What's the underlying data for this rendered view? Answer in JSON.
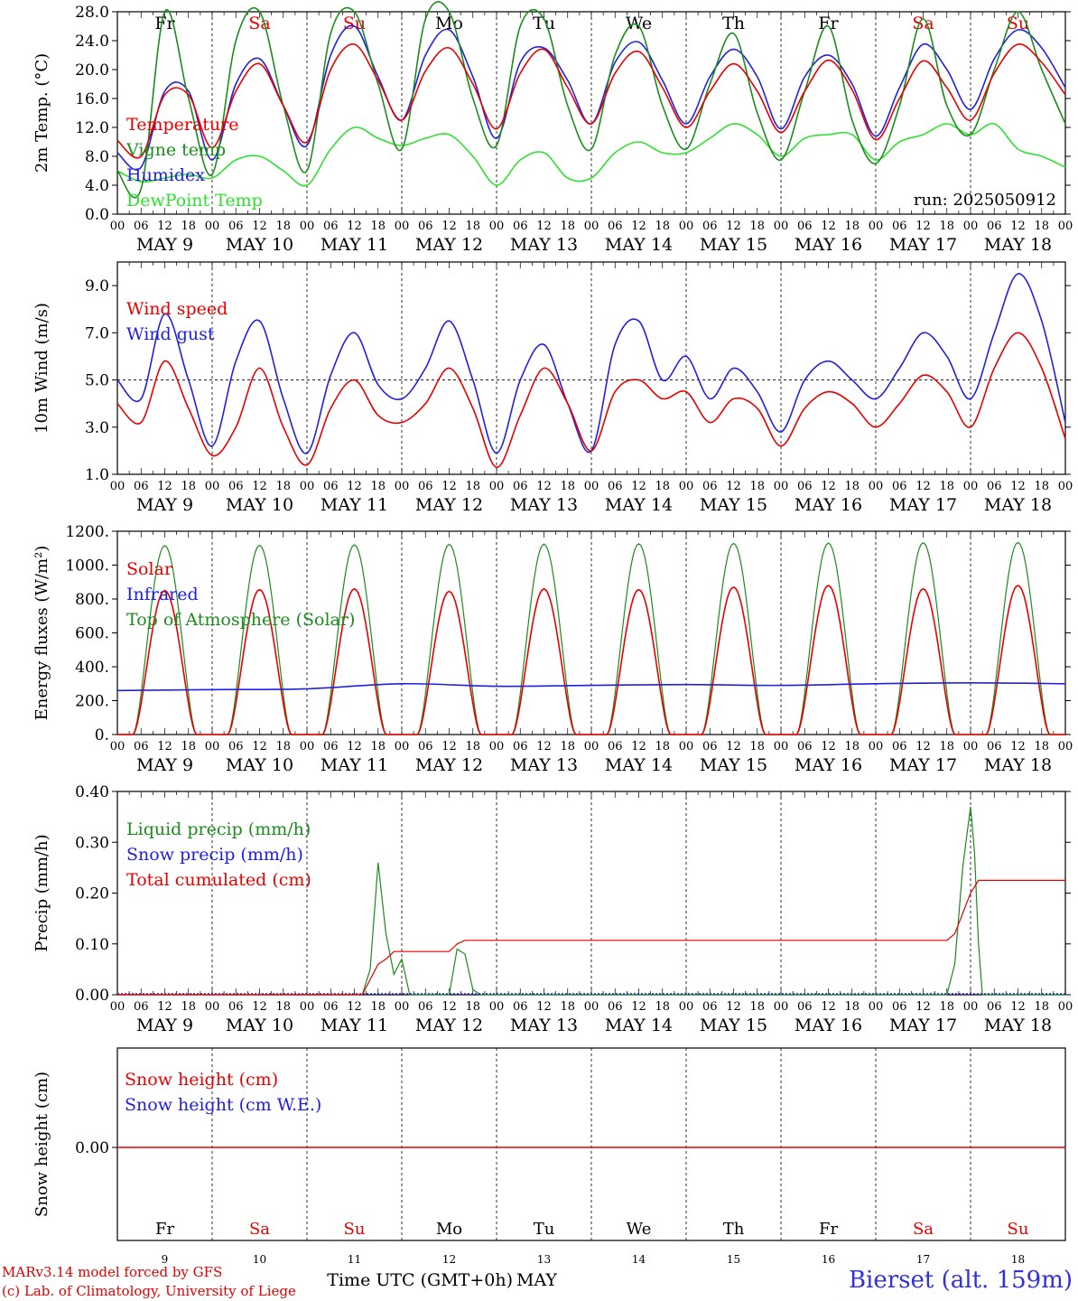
{
  "colors": {
    "red": "#e80000",
    "green": "#1c8c1c",
    "blue": "#2020e0",
    "lime": "#30e030",
    "black": "#000000",
    "weekend": "#e80000"
  },
  "days": [
    {
      "abbr": "Fr",
      "date": "MAY  9",
      "num": "9",
      "weekend": false
    },
    {
      "abbr": "Sa",
      "date": "MAY 10",
      "num": "10",
      "weekend": true
    },
    {
      "abbr": "Su",
      "date": "MAY 11",
      "num": "11",
      "weekend": true
    },
    {
      "abbr": "Mo",
      "date": "MAY 12",
      "num": "12",
      "weekend": false
    },
    {
      "abbr": "Tu",
      "date": "MAY 13",
      "num": "13",
      "weekend": false
    },
    {
      "abbr": "We",
      "date": "MAY 14",
      "num": "14",
      "weekend": false
    },
    {
      "abbr": "Th",
      "date": "MAY 15",
      "num": "15",
      "weekend": false
    },
    {
      "abbr": "Fr",
      "date": "MAY 16",
      "num": "16",
      "weekend": false
    },
    {
      "abbr": "Sa",
      "date": "MAY 17",
      "num": "17",
      "weekend": true
    },
    {
      "abbr": "Su",
      "date": "MAY 18",
      "num": "18",
      "weekend": true
    }
  ],
  "hour_ticks": [
    "00",
    "06",
    "12",
    "18"
  ],
  "final_hour_tick": "00",
  "run_label": "run: 2025050912",
  "xaxis_label": "Time UTC (GMT+0h)",
  "month_label": "MAY",
  "footer": {
    "credit_line1": "MARv3.14 model forced by GFS",
    "credit_line2": "(c) Lab. of Climatology, University of Liege",
    "station": "Bierset (alt. 159m)"
  },
  "chart_data": [
    {
      "type": "line",
      "ylabel": "2m Temp. (°C)",
      "ylim": [
        0,
        28
      ],
      "yticks": [
        "0.0",
        "4.0",
        "8.0",
        "12.0",
        "16.0",
        "20.0",
        "24.0",
        "28.0"
      ],
      "x_unit": "hours since 2025-05-09 00 UTC",
      "x_range": [
        0,
        240
      ],
      "series": [
        {
          "name": "Temperature",
          "color": "red",
          "x": [
            0,
            6,
            12,
            18,
            24,
            30,
            36,
            42,
            48,
            54,
            60,
            66,
            72,
            78,
            84,
            90,
            96,
            102,
            108,
            114,
            120,
            126,
            132,
            138,
            144,
            150,
            156,
            162,
            168,
            174,
            180,
            186,
            192,
            198,
            204,
            210,
            216,
            222,
            228,
            234,
            240
          ],
          "values": [
            10.2,
            8.0,
            16.5,
            16.5,
            9.2,
            17.0,
            20.8,
            15.0,
            10.0,
            20.0,
            23.5,
            18.5,
            13.0,
            19.8,
            23.0,
            18.0,
            11.8,
            19.5,
            22.8,
            17.5,
            12.5,
            19.5,
            22.5,
            17.5,
            12.0,
            17.0,
            20.8,
            17.0,
            11.3,
            17.0,
            21.3,
            17.2,
            10.3,
            16.0,
            21.2,
            17.5,
            13.0,
            19.5,
            23.5,
            21.0,
            16.5
          ]
        },
        {
          "name": "Vigne temp",
          "color": "green",
          "x": [
            0,
            6,
            12,
            18,
            24,
            30,
            36,
            42,
            48,
            54,
            60,
            66,
            72,
            78,
            84,
            90,
            96,
            102,
            108,
            114,
            120,
            126,
            132,
            138,
            144,
            150,
            156,
            162,
            168,
            174,
            180,
            186,
            192,
            198,
            204,
            210,
            216,
            222,
            228,
            234,
            240
          ],
          "values": [
            6.0,
            3.5,
            28.0,
            16.0,
            5.5,
            24.0,
            28.0,
            15.0,
            6.0,
            25.0,
            28.0,
            18.0,
            9.0,
            27.0,
            28.0,
            16.0,
            9.5,
            26.0,
            27.0,
            15.0,
            9.0,
            22.0,
            26.0,
            15.0,
            9.0,
            18.0,
            25.0,
            14.0,
            7.5,
            17.0,
            26.0,
            13.0,
            7.0,
            15.0,
            27.0,
            15.0,
            11.0,
            20.0,
            28.0,
            20.0,
            12.5
          ]
        },
        {
          "name": "Humidex",
          "color": "blue",
          "x": [
            0,
            6,
            12,
            18,
            24,
            30,
            36,
            42,
            48,
            54,
            60,
            66,
            72,
            78,
            84,
            90,
            96,
            102,
            108,
            114,
            120,
            126,
            132,
            138,
            144,
            150,
            156,
            162,
            168,
            174,
            180,
            186,
            192,
            198,
            204,
            210,
            216,
            222,
            228,
            234,
            240
          ],
          "values": [
            8.5,
            6.5,
            17.0,
            17.0,
            7.5,
            18.0,
            21.5,
            15.0,
            9.5,
            22.0,
            26.0,
            19.0,
            13.0,
            22.0,
            25.5,
            19.0,
            10.5,
            21.0,
            23.0,
            18.5,
            12.5,
            21.0,
            23.8,
            18.5,
            12.5,
            19.0,
            22.8,
            19.0,
            11.8,
            19.0,
            22.0,
            18.0,
            10.8,
            17.5,
            23.5,
            20.0,
            14.5,
            21.5,
            25.5,
            23.0,
            17.5
          ]
        },
        {
          "name": "DewPoint Temp",
          "color": "lime",
          "x": [
            0,
            6,
            12,
            18,
            24,
            30,
            36,
            42,
            48,
            54,
            60,
            66,
            72,
            78,
            84,
            90,
            96,
            102,
            108,
            114,
            120,
            126,
            132,
            138,
            144,
            150,
            156,
            162,
            168,
            174,
            180,
            186,
            192,
            198,
            204,
            210,
            216,
            222,
            228,
            234,
            240
          ],
          "values": [
            6.0,
            4.5,
            5.0,
            5.5,
            5.0,
            7.5,
            8.0,
            6.0,
            4.0,
            9.0,
            12.0,
            10.5,
            9.5,
            10.5,
            11.0,
            8.0,
            4.0,
            7.5,
            8.5,
            5.0,
            5.0,
            8.5,
            10.0,
            8.5,
            8.5,
            10.5,
            12.5,
            11.0,
            8.0,
            10.5,
            11.0,
            11.0,
            7.5,
            10.0,
            11.0,
            12.5,
            11.0,
            12.5,
            9.0,
            8.0,
            6.5
          ]
        }
      ]
    },
    {
      "type": "line",
      "ylabel": "10m Wind (m/s)",
      "ylim": [
        1,
        10
      ],
      "yticks": [
        "1.0",
        "3.0",
        "5.0",
        "7.0",
        "9.0"
      ],
      "reference_line": 5.0,
      "x_unit": "hours since 2025-05-09 00 UTC",
      "x_range": [
        0,
        240
      ],
      "series": [
        {
          "name": "Wind speed",
          "color": "red",
          "x": [
            0,
            6,
            12,
            18,
            24,
            30,
            36,
            42,
            48,
            54,
            60,
            66,
            72,
            78,
            84,
            90,
            96,
            102,
            108,
            114,
            120,
            126,
            132,
            138,
            144,
            150,
            156,
            162,
            168,
            174,
            180,
            186,
            192,
            198,
            204,
            210,
            216,
            222,
            228,
            234,
            240
          ],
          "values": [
            4.0,
            3.2,
            5.8,
            3.8,
            1.8,
            3.0,
            5.5,
            3.0,
            1.4,
            3.8,
            5.0,
            3.5,
            3.2,
            4.0,
            5.5,
            3.8,
            1.3,
            3.5,
            5.5,
            4.0,
            2.0,
            4.5,
            5.0,
            4.2,
            4.5,
            3.2,
            4.2,
            3.8,
            2.2,
            3.8,
            4.5,
            4.0,
            3.0,
            4.0,
            5.2,
            4.5,
            3.0,
            5.5,
            7.0,
            5.5,
            2.5
          ]
        },
        {
          "name": "Wind gust",
          "color": "blue",
          "x": [
            0,
            6,
            12,
            18,
            24,
            30,
            36,
            42,
            48,
            54,
            60,
            66,
            72,
            78,
            84,
            90,
            96,
            102,
            108,
            114,
            120,
            126,
            132,
            138,
            144,
            150,
            156,
            162,
            168,
            174,
            180,
            186,
            192,
            198,
            204,
            210,
            216,
            222,
            228,
            234,
            240
          ],
          "values": [
            5.0,
            4.2,
            7.8,
            5.0,
            2.2,
            5.8,
            7.5,
            4.2,
            1.9,
            5.2,
            7.0,
            4.8,
            4.2,
            5.5,
            7.5,
            5.0,
            1.9,
            5.0,
            6.5,
            4.0,
            2.0,
            6.5,
            7.5,
            5.0,
            6.0,
            4.2,
            5.5,
            4.5,
            2.8,
            5.0,
            5.8,
            5.0,
            4.2,
            5.5,
            7.0,
            6.0,
            4.2,
            7.0,
            9.5,
            7.5,
            3.2
          ]
        }
      ]
    },
    {
      "type": "line",
      "ylabel": "Energy fluxes (W/m²)",
      "ylim": [
        0,
        1200
      ],
      "yticks": [
        "0.",
        "200.",
        "400.",
        "600.",
        "800.",
        "1000.",
        "1200."
      ],
      "x_unit": "hours since 2025-05-09 00 UTC",
      "x_range": [
        0,
        240
      ],
      "diurnal_daylight_hours": [
        4,
        20
      ],
      "series": [
        {
          "name": "Solar",
          "color": "red",
          "daily_peak": [
            850,
            855,
            860,
            845,
            860,
            855,
            870,
            880,
            860,
            880
          ],
          "peak_hour": 13
        },
        {
          "name": "Infrared",
          "color": "blue",
          "x": [
            0,
            24,
            48,
            72,
            96,
            120,
            144,
            168,
            192,
            216,
            240
          ],
          "values": [
            260,
            265,
            270,
            300,
            285,
            290,
            295,
            290,
            300,
            305,
            300
          ]
        },
        {
          "name": "Top of Atmosphere (Solar)",
          "color": "green",
          "daily_peak": [
            1115,
            1117,
            1120,
            1122,
            1124,
            1126,
            1128,
            1130,
            1132,
            1134
          ],
          "peak_hour": 12
        }
      ]
    },
    {
      "type": "line",
      "ylabel": "Precip (mm/h)",
      "ylim": [
        0,
        0.4
      ],
      "yticks": [
        "0.00",
        "0.10",
        "0.20",
        "0.30",
        "0.40"
      ],
      "x_unit": "hours since 2025-05-09 00 UTC",
      "x_range": [
        0,
        240
      ],
      "series": [
        {
          "name": "Liquid precip (mm/h)",
          "color": "green",
          "x": [
            0,
            62,
            64,
            66,
            68,
            70,
            72,
            74,
            84,
            86,
            88,
            90,
            92,
            94,
            210,
            212,
            214,
            216,
            217,
            218,
            219,
            240
          ],
          "values": [
            0,
            0,
            0.05,
            0.26,
            0.12,
            0.04,
            0.07,
            0,
            0,
            0.09,
            0.08,
            0.01,
            0,
            0,
            0,
            0.06,
            0.25,
            0.37,
            0.28,
            0.1,
            0,
            0
          ]
        },
        {
          "name": "Snow precip (mm/h)",
          "color": "blue",
          "x": [
            0,
            240
          ],
          "values": [
            0,
            0
          ]
        },
        {
          "name": "Total cumulated (cm)",
          "color": "red",
          "x": [
            0,
            62,
            64,
            66,
            68,
            70,
            72,
            84,
            86,
            88,
            90,
            210,
            212,
            214,
            216,
            218,
            240
          ],
          "values": [
            0,
            0,
            0.03,
            0.06,
            0.07,
            0.085,
            0.085,
            0.085,
            0.1,
            0.107,
            0.107,
            0.107,
            0.12,
            0.16,
            0.2,
            0.225,
            0.225
          ]
        }
      ]
    },
    {
      "type": "line",
      "ylabel": "Snow height (cm)",
      "yticks": [
        "0.00"
      ],
      "x_unit": "hours since 2025-05-09 00 UTC",
      "x_range": [
        0,
        240
      ],
      "series": [
        {
          "name": "Snow height (cm)",
          "color": "red",
          "x": [
            0,
            240
          ],
          "values": [
            0,
            0
          ]
        },
        {
          "name": "Snow height (cm W.E.)",
          "color": "blue",
          "x": [
            0,
            240
          ],
          "values": [
            0,
            0
          ]
        }
      ]
    }
  ]
}
